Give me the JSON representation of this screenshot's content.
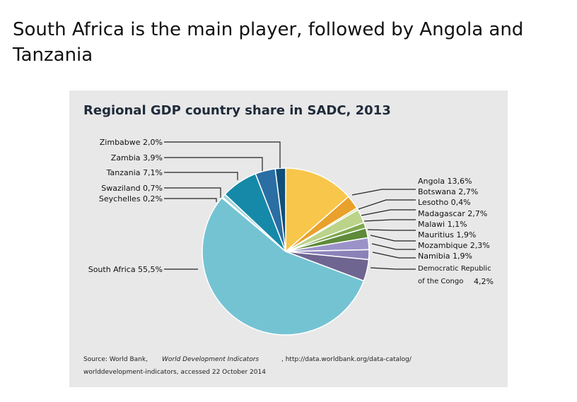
{
  "slide": {
    "title": "South Africa is the main player, followed by Angola and Tanzania"
  },
  "chart_data": {
    "type": "pie",
    "title": "Regional GDP country share in SADC, 2013",
    "slices": [
      {
        "country": "Angola",
        "value": 13.6,
        "label": "13,6%",
        "color": "#f8c64a"
      },
      {
        "country": "Botswana",
        "value": 2.7,
        "label": "2,7%",
        "color": "#e9a12b"
      },
      {
        "country": "Lesotho",
        "value": 0.4,
        "label": "0,4%",
        "color": "#cde29a"
      },
      {
        "country": "Madagascar",
        "value": 2.7,
        "label": "2,7%",
        "color": "#bcd38a"
      },
      {
        "country": "Malawi",
        "value": 1.1,
        "label": "1,1%",
        "color": "#7ea84d"
      },
      {
        "country": "Mauritius",
        "value": 1.9,
        "label": "1,9%",
        "color": "#5e8a3a"
      },
      {
        "country": "Mozambique",
        "value": 2.3,
        "label": "2,3%",
        "color": "#9b93c8"
      },
      {
        "country": "Namibia",
        "value": 1.9,
        "label": "1,9%",
        "color": "#8a82b8"
      },
      {
        "country": "Democratic Republic of the Congo",
        "value": 4.2,
        "label": "4,2%",
        "color": "#6e6590"
      },
      {
        "country": "South Africa",
        "value": 55.5,
        "label": "55,5%",
        "color": "#74c3d3"
      },
      {
        "country": "Seychelles",
        "value": 0.2,
        "label": "0,2%",
        "color": "#c7e5ec"
      },
      {
        "country": "Swaziland",
        "value": 0.7,
        "label": "0,7%",
        "color": "#9fd3df"
      },
      {
        "country": "Tanzania",
        "value": 7.1,
        "label": "7,1%",
        "color": "#1689a8"
      },
      {
        "country": "Zambia",
        "value": 3.9,
        "label": "3,9%",
        "color": "#2a6ea3"
      },
      {
        "country": "Zimbabwe",
        "value": 2.0,
        "label": "2,0%",
        "color": "#0f4f7a"
      }
    ]
  },
  "labels": {
    "zimbabwe": "Zimbabwe  2,0%",
    "zambia": "Zambia  3,9%",
    "tanzania": "Tanzania  7,1%",
    "swaziland": "Swaziland  0,7%",
    "seychelles": "Seychelles  0,2%",
    "south_africa": "South Africa  55,5%",
    "angola": "Angola  13,6%",
    "botswana": "Botswana  2,7%",
    "lesotho": "Lesotho  0,4%",
    "madagascar": "Madagascar  2,7%",
    "malawi": "Malawi  1,1%",
    "mauritius": "Mauritius  1,9%",
    "mozambique": "Mozambique  2,3%",
    "namibia": "Namibia  1,9%",
    "drc_line1": "Democratic Republic",
    "drc_line2": "of the Congo",
    "drc_value": "4,2%"
  },
  "source": {
    "prefix": "Source: World Bank,",
    "italic": "World Development Indicators",
    "url": ", http://data.worldbank.org/data-catalog/",
    "line2": "worlddevelopment-indicators, accessed 22 October 2014"
  }
}
